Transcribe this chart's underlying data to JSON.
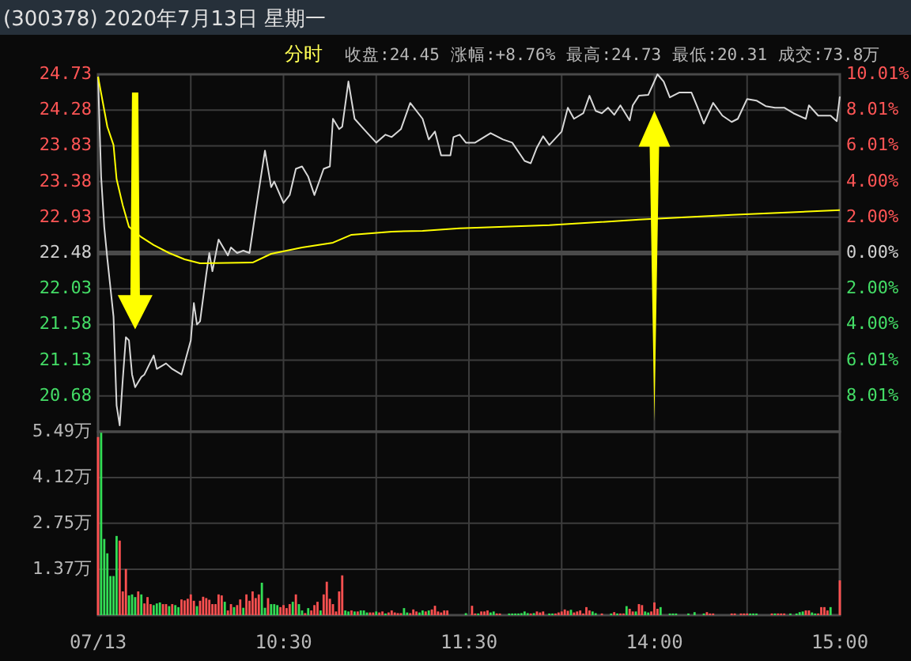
{
  "chart_data": [
    {
      "type": "line",
      "title": "(300378) 2020年7月13日 星期一",
      "subtitle": "分时",
      "annotations": [
        "收盘:24.45",
        "涨幅:+8.76%",
        "最高:24.73",
        "最低:20.31",
        "成交:73.8万"
      ],
      "categories": [
        null,
        null,
        null,
        null,
        null,
        null,
        null,
        null,
        null,
        null,
        null,
        null,
        null,
        null,
        null,
        null,
        null,
        null,
        null,
        null,
        null,
        null,
        null,
        null,
        null,
        null,
        null,
        null,
        null,
        null,
        null,
        null,
        null,
        null,
        null,
        null,
        null,
        null,
        null,
        null,
        null,
        null,
        null,
        null,
        null,
        null,
        null,
        null,
        null,
        null,
        null,
        null,
        null,
        null,
        null,
        null,
        null,
        null,
        null,
        null,
        null,
        null,
        null,
        null,
        null,
        null,
        null,
        null,
        null,
        null,
        null,
        null,
        null,
        null,
        null,
        null,
        null,
        null,
        null,
        null,
        null,
        null,
        null,
        null,
        null,
        null,
        null,
        null,
        null,
        null,
        null,
        null,
        null,
        null,
        null,
        null,
        null,
        null,
        null,
        null,
        null,
        null,
        null,
        null,
        null,
        null,
        null,
        null,
        null,
        null,
        null,
        null,
        null,
        null,
        null,
        null,
        null,
        null,
        null,
        null,
        null,
        null,
        null,
        null,
        null,
        null,
        null,
        null,
        null,
        null,
        null,
        null,
        null,
        null,
        null,
        null,
        null,
        null,
        null,
        null,
        null,
        null,
        null,
        null,
        null,
        null,
        null,
        null,
        null,
        null,
        null,
        null,
        null,
        null,
        null,
        null,
        null,
        null,
        null,
        null,
        null,
        null,
        null,
        null,
        null,
        null,
        null,
        null,
        null,
        null,
        null,
        null,
        null,
        null,
        null,
        null,
        null,
        null,
        null,
        null,
        null,
        null,
        null,
        null,
        null,
        null,
        null,
        null,
        null,
        null,
        null,
        null,
        null,
        null,
        null,
        null,
        null,
        null,
        null,
        null,
        null,
        null,
        null,
        null,
        null,
        null,
        null,
        null,
        null,
        null,
        null,
        null,
        null,
        null,
        null,
        null,
        null,
        null,
        null,
        null,
        null,
        null,
        null,
        null,
        null,
        null,
        null,
        null,
        null,
        null,
        null,
        null,
        null,
        null,
        null,
        null,
        null,
        null,
        null,
        null,
        null
      ],
      "tick_labels": "y",
      "ylim": [
        20.23,
        24.73
      ],
      "yticks": [
        20.68,
        21.13,
        21.58,
        22.03,
        22.48,
        22.93,
        23.38,
        23.83,
        24.28,
        24.73
      ],
      "y2lim": [
        -10.01,
        10.01
      ],
      "y2ticks": [
        {
          "value": -8.01,
          "label": "8.01%"
        },
        {
          "value": -6.01,
          "label": "6.01%"
        },
        {
          "value": -4.0,
          "label": "4.00%"
        },
        {
          "value": -2.0,
          "label": "2.00%"
        },
        {
          "value": 0,
          "label": "0.00%"
        },
        {
          "value": 2.0,
          "label": "2.00%"
        },
        {
          "value": 4.0,
          "label": "4.00%"
        },
        {
          "value": 6.01,
          "label": "6.01%"
        },
        {
          "value": 8.01,
          "label": "8.01%"
        },
        {
          "value": 10.01,
          "label": "10.01%"
        }
      ],
      "ref_lines": [
        {
          "axis": "y",
          "value": 22.48,
          "color": "#4a4a4a"
        }
      ],
      "grid": true,
      "series": [
        {
          "color": "#d8d8d8",
          "values": [
            24.7,
            23.44,
            22.81,
            22.41,
            null,
            21.68,
            20.56,
            20.31,
            20.89,
            21.42,
            21.38,
            20.95,
            20.79,
            null,
            20.92,
            20.95,
            null,
            null,
            21.19,
            21.02,
            null,
            null,
            21.09,
            null,
            21.02,
            null,
            null,
            20.95,
            null,
            null,
            21.38,
            21.85,
            21.58,
            21.62,
            null,
            22.21,
            22.48,
            22.25,
            null,
            22.65,
            null,
            null,
            22.45,
            22.55,
            null,
            22.48,
            null,
            22.51,
            null,
            22.48,
            null,
            23.01,
            null,
            null,
            23.77,
            null,
            23.31,
            23.38,
            null,
            null,
            23.11,
            null,
            23.21,
            null,
            23.54,
            null,
            23.57,
            null,
            23.44,
            null,
            23.21,
            null,
            null,
            23.54,
            null,
            23.57,
            24.17,
            null,
            24.04,
            24.07,
            null,
            24.64,
            null,
            24.17,
            null,
            null,
            24.04,
            null,
            null,
            null,
            23.87,
            null,
            null,
            23.97,
            null,
            23.94,
            null,
            null,
            24.04,
            null,
            null,
            24.37,
            null,
            null,
            null,
            24.17,
            null,
            23.91,
            null,
            24.01,
            null,
            23.71,
            null,
            null,
            23.71,
            23.94,
            null,
            23.97,
            null,
            23.87,
            null,
            null,
            23.87,
            null,
            null,
            null,
            null,
            23.99,
            null,
            null,
            null,
            23.91,
            null,
            null,
            23.87,
            null,
            null,
            null,
            23.64,
            null,
            23.61,
            null,
            23.81,
            null,
            23.95,
            null,
            23.84,
            null,
            null,
            null,
            24.01,
            null,
            24.31,
            null,
            24.17,
            null,
            null,
            24.24,
            null,
            24.46,
            null,
            24.27,
            null,
            24.24,
            null,
            24.31,
            null,
            24.22,
            null,
            24.34,
            null,
            null,
            24.15,
            24.34,
            null,
            24.46,
            null,
            null,
            24.47,
            null,
            null,
            24.73,
            null,
            24.64,
            null,
            24.44,
            null,
            null,
            24.5,
            null,
            null,
            null,
            24.5,
            null,
            24.31,
            null,
            24.11,
            null,
            null,
            24.37,
            null,
            null,
            24.21,
            null,
            null,
            24.13,
            null,
            24.17,
            null,
            null,
            24.42,
            null,
            null,
            24.4,
            null,
            null,
            24.33,
            null,
            null,
            24.31,
            null,
            null,
            24.31,
            null,
            null,
            24.24,
            null,
            null,
            null,
            24.17,
            24.34,
            null,
            null,
            24.21,
            null,
            null,
            null,
            24.21,
            null,
            24.14,
            24.45
          ]
        },
        {
          "color": "#ffff00",
          "values": [
            24.7,
            null,
            null,
            24.07,
            null,
            23.84,
            23.41,
            null,
            23.08,
            null,
            22.81,
            null,
            null,
            null,
            22.68,
            null,
            null,
            null,
            22.58,
            null,
            null,
            null,
            null,
            22.48,
            null,
            null,
            null,
            null,
            22.4,
            null,
            null,
            null,
            null,
            22.35,
            null,
            null,
            null,
            null,
            null,
            null,
            null,
            null,
            null,
            null,
            null,
            null,
            null,
            null,
            null,
            null,
            22.36,
            null,
            null,
            null,
            null,
            null,
            22.47,
            null,
            null,
            null,
            null,
            null,
            null,
            null,
            null,
            null,
            22.55,
            null,
            null,
            null,
            null,
            null,
            null,
            null,
            null,
            null,
            22.61,
            null,
            null,
            null,
            null,
            null,
            22.71,
            null,
            null,
            null,
            null,
            null,
            null,
            null,
            null,
            null,
            null,
            null,
            null,
            22.75,
            null,
            null,
            null,
            null,
            null,
            null,
            null,
            null,
            null,
            22.76,
            null,
            null,
            null,
            null,
            null,
            null,
            null,
            null,
            null,
            null,
            null,
            22.79,
            null,
            null,
            null,
            null,
            null,
            null,
            null,
            null,
            null,
            null,
            null,
            null,
            null,
            null,
            null,
            null,
            null,
            null,
            null,
            null,
            null,
            null,
            null,
            null,
            null,
            null,
            null,
            null,
            22.83,
            null,
            null,
            null,
            null,
            null,
            null,
            null,
            null,
            null,
            null,
            null,
            null,
            null,
            null,
            null,
            null,
            null,
            null,
            null,
            null,
            null,
            null,
            null,
            null,
            null,
            null,
            null,
            null,
            22.9,
            null,
            null,
            null,
            null,
            null,
            null,
            null,
            null,
            null,
            null,
            null,
            null,
            null,
            null,
            null,
            null,
            null,
            null,
            null,
            null,
            null,
            null,
            null,
            null,
            null,
            null,
            null,
            null,
            null,
            22.96,
            null,
            null,
            null,
            null,
            null,
            null,
            null,
            null,
            null,
            null,
            null,
            null,
            null,
            null,
            null,
            null,
            null,
            null,
            null,
            null,
            null,
            null,
            null,
            null,
            null,
            null,
            null,
            null,
            null,
            null,
            null,
            null,
            null,
            null,
            23.02
          ]
        }
      ]
    },
    {
      "type": "bar",
      "categories": [
        "07/13",
        null,
        null,
        null,
        null,
        null,
        null,
        null,
        null,
        null,
        null,
        null,
        null,
        null,
        null,
        null,
        null,
        null,
        null,
        null,
        null,
        null,
        null,
        null,
        null,
        null,
        null,
        null,
        null,
        null,
        null,
        null,
        null,
        null,
        null,
        null,
        null,
        null,
        null,
        null,
        null,
        null,
        null,
        null,
        null,
        null,
        null,
        null,
        null,
        null,
        null,
        null,
        null,
        null,
        null,
        null,
        null,
        null,
        null,
        null,
        "10:30",
        null,
        null,
        null,
        null,
        null,
        null,
        null,
        null,
        null,
        null,
        null,
        null,
        null,
        null,
        null,
        null,
        null,
        null,
        null,
        null,
        null,
        null,
        null,
        null,
        null,
        null,
        null,
        null,
        null,
        null,
        null,
        null,
        null,
        null,
        null,
        null,
        null,
        null,
        null,
        null,
        null,
        null,
        null,
        null,
        null,
        null,
        null,
        null,
        null,
        null,
        null,
        null,
        null,
        null,
        null,
        null,
        null,
        null,
        null,
        "11:30",
        null,
        null,
        null,
        null,
        null,
        null,
        null,
        null,
        null,
        null,
        null,
        null,
        null,
        null,
        null,
        null,
        null,
        null,
        null,
        null,
        null,
        null,
        null,
        null,
        null,
        null,
        null,
        null,
        null,
        null,
        null,
        null,
        null,
        null,
        null,
        null,
        null,
        null,
        null,
        null,
        null,
        null,
        null,
        null,
        null,
        null,
        null,
        null,
        null,
        null,
        null,
        null,
        null,
        null,
        null,
        null,
        null,
        null,
        null,
        "14:00",
        null,
        null,
        null,
        null,
        null,
        null,
        null,
        null,
        null,
        null,
        null,
        null,
        null,
        null,
        null,
        null,
        null,
        null,
        null,
        null,
        null,
        null,
        null,
        null,
        null,
        null,
        null,
        null,
        null,
        null,
        null,
        null,
        null,
        null,
        null,
        null,
        null,
        null,
        null,
        null,
        null,
        null,
        null,
        null,
        null,
        null,
        null,
        null,
        null,
        null,
        null,
        null,
        null,
        null,
        null,
        null,
        null,
        null,
        null,
        "15:00"
      ],
      "ylim": [
        0,
        5.49
      ],
      "yticks": [
        {
          "value": 1.37,
          "label": "1.37万"
        },
        {
          "value": 2.75,
          "label": "2.75万"
        },
        {
          "value": 4.12,
          "label": "4.12万"
        },
        {
          "value": 5.49,
          "label": "5.49万"
        }
      ],
      "grid": true,
      "values": [
        5.33,
        5.46,
        2.28,
        1.85,
        1.17,
        1.17,
        2.37,
        2.23,
        0.71,
        1.38,
        0.59,
        0.62,
        0.54,
        0.71,
        0.62,
        0.35,
        0.54,
        0.33,
        0.3,
        0.35,
        0.38,
        0.33,
        0.33,
        0.27,
        0.33,
        0.3,
        0.24,
        0.47,
        0.44,
        0.49,
        0.62,
        0.43,
        0.27,
        0.43,
        0.55,
        0.51,
        0.46,
        0.33,
        0.33,
        0.62,
        0.59,
        0.4,
        0.14,
        0.33,
        0.24,
        0.3,
        0.47,
        0.22,
        0.62,
        0.43,
        0.71,
        0.51,
        0.62,
        0.97,
        0.22,
        0.51,
        0.33,
        0.33,
        0.3,
        0.24,
        0.3,
        0.21,
        0.33,
        0.4,
        0.62,
        0.33,
        0.14,
        0.06,
        0.21,
        0.14,
        0.3,
        0.4,
        0.14,
        0.62,
        1.0,
        0.49,
        0.33,
        0.11,
        0.71,
        1.19,
        0.14,
        0.11,
        0.14,
        0.11,
        0.11,
        0.14,
        0.14,
        0.08,
        0.08,
        0.08,
        0.11,
        0.08,
        0.11,
        0.05,
        0.08,
        0.14,
        0.08,
        0.06,
        0.06,
        0.21,
        0.08,
        0.06,
        0.17,
        0.11,
        0.08,
        0.14,
        0.11,
        0.14,
        0.17,
        0.28,
        0.11,
        0.08,
        0.14,
        0.14,
        null,
        null,
        null,
        null,
        null,
        0.06,
        null,
        0.28,
        0.05,
        0.05,
        0.11,
        0.11,
        0.14,
        0.08,
        0.11,
        0.05,
        0.05,
        null,
        null,
        0.05,
        0.05,
        0.05,
        0.05,
        0.06,
        0.11,
        0.06,
        0.05,
        0.06,
        0.11,
        0.08,
        0.11,
        null,
        0.05,
        0.05,
        0.05,
        0.08,
        0.11,
        0.17,
        0.13,
        0.16,
        0.08,
        0.11,
        0.14,
        0.05,
        0.24,
        0.14,
        0.11,
        0.06,
        null,
        0.05,
        null,
        null,
        0.05,
        0.09,
        0.05,
        0.05,
        0.05,
        0.27,
        0.19,
        0.11,
        0.11,
        0.33,
        0.3,
        0.11,
        0.08,
        0.11,
        0.38,
        0.19,
        0.24,
        null,
        null,
        0.05,
        0.05,
        0.05,
        null,
        null,
        null,
        0.05,
        null,
        0.09,
        null,
        null,
        0.05,
        0.09,
        0.05,
        0.05,
        null,
        null,
        null,
        null,
        null,
        0.05,
        0.05,
        null,
        0.05,
        0.05,
        0.05,
        0.05,
        0.05,
        0.05,
        null,
        null,
        null,
        null,
        0.05,
        0.05,
        0.05,
        0.05,
        0.05,
        null,
        0.05,
        null,
        0.05,
        0.09,
        0.11,
        0.14,
        0.14,
        0.08,
        0.05,
        0.05,
        0.24,
        0.24,
        0.14,
        0.24,
        null,
        null,
        1.04
      ],
      "colors": [
        "#ff5050",
        "#33dd55",
        "#33dd55",
        "#33dd55",
        "#33dd55",
        "#33dd55",
        "#33dd55",
        "#ff5050",
        "#ff5050",
        "#ff5050",
        "#33dd55",
        "#33dd55",
        "#33dd55",
        "#ff5050",
        "#33dd55",
        "#ff5050",
        "#ff5050",
        "#ff5050",
        "#33dd55",
        "#33dd55",
        "#33dd55",
        "#ff5050",
        "#ff5050",
        "#33dd55",
        "#ff5050",
        "#33dd55",
        "#33dd55",
        "#ff5050",
        "#ff5050",
        "#ff5050",
        "#ff5050",
        "#ff5050",
        "#33dd55",
        "#ff5050",
        "#ff5050",
        "#ff5050",
        "#ff5050",
        "#ff5050",
        "#ff5050",
        "#ff5050",
        "#ff5050",
        "#33dd55",
        "#ff5050",
        "#ff5050",
        "#33dd55",
        "#ff5050",
        "#ff5050",
        "#33dd55",
        "#ff5050",
        "#ff5050",
        "#ff5050",
        "#ff5050",
        "#ff5050",
        "#33dd55",
        "#33dd55",
        "#ff5050",
        "#33dd55",
        "#33dd55",
        "#33dd55",
        "#ff5050",
        "#ff5050",
        "#ff5050",
        "#ff5050",
        "#33dd55",
        "#ff5050",
        "#33dd55",
        "#33dd55",
        "#ff5050",
        "#33dd55",
        "#ff5050",
        "#ff5050",
        "#ff5050",
        "#33dd55",
        "#ff5050",
        "#ff5050",
        "#ff5050",
        "#ff5050",
        "#ff5050",
        "#ff5050",
        "#ff5050",
        "#33dd55",
        "#33dd55",
        "#ff5050",
        "#33dd55",
        "#ff5050",
        "#33dd55",
        "#33dd55",
        "#33dd55",
        "#ff5050",
        "#ff5050",
        "#33dd55",
        "#ff5050",
        "#ff5050",
        "#33dd55",
        "#ff5050",
        "#ff5050",
        "#ff5050",
        "#ff5050",
        "#ff5050",
        "#33dd55",
        "#33dd55",
        "#ff5050",
        "#ff5050",
        "#ff5050",
        "#33dd55",
        "#33dd55",
        "#ff5050",
        "#33dd55",
        "#ff5050",
        "#ff5050",
        "#ff5050",
        "#ff5050",
        "#ff5050",
        "#ff5050",
        null,
        null,
        null,
        null,
        null,
        "#33dd55",
        null,
        "#ff5050",
        "#ff5050",
        "#33dd55",
        "#ff5050",
        "#ff5050",
        "#ff5050",
        "#33dd55",
        "#33dd55",
        "#ff5050",
        "#ff5050",
        null,
        null,
        "#33dd55",
        "#33dd55",
        "#33dd55",
        "#33dd55",
        "#33dd55",
        "#33dd55",
        "#33dd55",
        "#ff5050",
        "#33dd55",
        "#ff5050",
        "#ff5050",
        "#ff5050",
        null,
        "#33dd55",
        "#33dd55",
        "#ff5050",
        "#ff5050",
        "#ff5050",
        "#ff5050",
        "#ff5050",
        "#33dd55",
        "#ff5050",
        "#ff5050",
        "#ff5050",
        "#ff5050",
        "#ff5050",
        "#ff5050",
        "#33dd55",
        "#33dd55",
        null,
        "#ff5050",
        null,
        null,
        "#33dd55",
        "#ff5050",
        "#33dd55",
        "#ff5050",
        "#ff5050",
        "#33dd55",
        "#ff5050",
        "#ff5050",
        "#33dd55",
        "#ff5050",
        "#ff5050",
        "#33dd55",
        "#33dd55",
        "#ff5050",
        "#ff5050",
        "#ff5050",
        "#33dd55",
        null,
        null,
        "#33dd55",
        "#33dd55",
        "#33dd55",
        null,
        null,
        null,
        "#33dd55",
        null,
        "#33dd55",
        null,
        null,
        "#33dd55",
        "#ff5050",
        "#ff5050",
        "#ff5050",
        null,
        null,
        null,
        null,
        null,
        "#ff5050",
        "#ff5050",
        null,
        "#ff5050",
        "#ff5050",
        "#ff5050",
        "#33dd55",
        "#33dd55",
        "#33dd55",
        null,
        null,
        null,
        null,
        "#ff5050",
        "#33dd55",
        "#ff5050",
        "#ff5050",
        "#ff5050",
        null,
        "#33dd55",
        null,
        "#33dd55",
        "#33dd55",
        "#33dd55",
        "#ff5050",
        "#ff5050",
        "#33dd55",
        "#33dd55",
        "#ff5050",
        "#ff5050",
        "#ff5050",
        "#ff5050",
        "#33dd55",
        null,
        null,
        "#ff5050"
      ]
    }
  ]
}
